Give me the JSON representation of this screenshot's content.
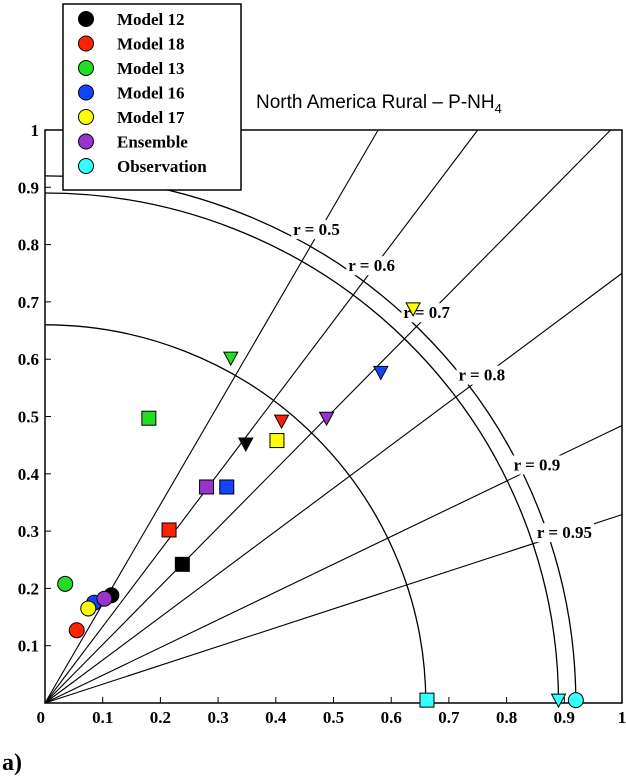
{
  "chart_data": {
    "type": "taylor-diagram",
    "title_main": "North America Rural – P-NH",
    "title_sub": "4",
    "panel_label": "a)",
    "xlim": [
      0,
      1
    ],
    "ylim": [
      0,
      1
    ],
    "x_ticks": [
      "0",
      "0.1",
      "0.2",
      "0.3",
      "0.4",
      "0.5",
      "0.6",
      "0.7",
      "0.8",
      "0.9",
      "1"
    ],
    "y_ticks": [
      "0",
      "0.1",
      "0.2",
      "0.3",
      "0.4",
      "0.5",
      "0.6",
      "0.7",
      "0.8",
      "0.9",
      "1"
    ],
    "correlation_lines": [
      {
        "r": 0.5,
        "label": "r = 0.5"
      },
      {
        "r": 0.6,
        "label": "r = 0.6"
      },
      {
        "r": 0.7,
        "label": "r = 0.7"
      },
      {
        "r": 0.8,
        "label": "r = 0.8"
      },
      {
        "r": 0.9,
        "label": "r = 0.9"
      },
      {
        "r": 0.95,
        "label": "r = 0.95"
      }
    ],
    "std_arcs": [
      0.66,
      0.89,
      0.92
    ],
    "legend_position": "top-left",
    "series": [
      {
        "name": "Model 12",
        "color": "#000000",
        "points": [
          {
            "x": 0.115,
            "y": 0.188,
            "marker": "circle"
          },
          {
            "x": 0.238,
            "y": 0.242,
            "marker": "square"
          },
          {
            "x": 0.348,
            "y": 0.452,
            "marker": "triangle-down"
          }
        ]
      },
      {
        "name": "Model 18",
        "color": "#ff2200",
        "points": [
          {
            "x": 0.055,
            "y": 0.127,
            "marker": "circle"
          },
          {
            "x": 0.215,
            "y": 0.302,
            "marker": "square"
          },
          {
            "x": 0.41,
            "y": 0.492,
            "marker": "triangle-down"
          }
        ]
      },
      {
        "name": "Model 13",
        "color": "#22dd22",
        "points": [
          {
            "x": 0.035,
            "y": 0.208,
            "marker": "circle"
          },
          {
            "x": 0.18,
            "y": 0.497,
            "marker": "square"
          },
          {
            "x": 0.322,
            "y": 0.602,
            "marker": "triangle-down"
          }
        ]
      },
      {
        "name": "Model 16",
        "color": "#1144ff",
        "points": [
          {
            "x": 0.085,
            "y": 0.175,
            "marker": "circle"
          },
          {
            "x": 0.315,
            "y": 0.377,
            "marker": "square"
          },
          {
            "x": 0.582,
            "y": 0.577,
            "marker": "triangle-down"
          }
        ]
      },
      {
        "name": "Model 17",
        "color": "#ffff00",
        "points": [
          {
            "x": 0.075,
            "y": 0.165,
            "marker": "circle"
          },
          {
            "x": 0.402,
            "y": 0.458,
            "marker": "square"
          },
          {
            "x": 0.638,
            "y": 0.688,
            "marker": "triangle-down"
          }
        ]
      },
      {
        "name": "Ensemble",
        "color": "#9933cc",
        "points": [
          {
            "x": 0.103,
            "y": 0.182,
            "marker": "circle"
          },
          {
            "x": 0.28,
            "y": 0.377,
            "marker": "square"
          },
          {
            "x": 0.488,
            "y": 0.497,
            "marker": "triangle-down"
          }
        ]
      },
      {
        "name": "Observation",
        "color": "#33ffff",
        "points": [
          {
            "x": 0.92,
            "y": 0.005,
            "marker": "circle"
          },
          {
            "x": 0.662,
            "y": 0.005,
            "marker": "square"
          },
          {
            "x": 0.89,
            "y": 0.005,
            "marker": "triangle-down"
          }
        ]
      }
    ]
  }
}
